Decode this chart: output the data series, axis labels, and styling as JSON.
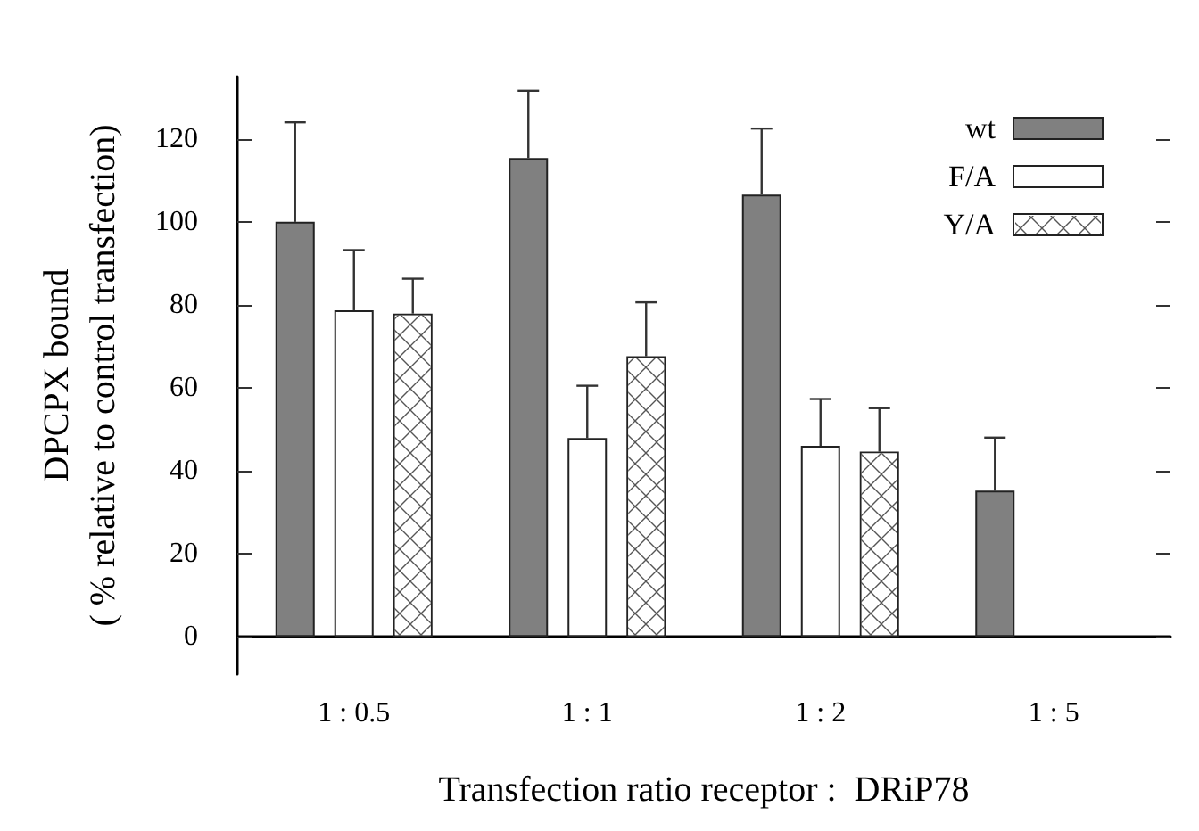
{
  "chart_data": {
    "type": "bar",
    "xlabel": "Transfection ratio receptor :  DRiP78",
    "ylabel": "DPCPX bound\n( % relative to control transfection)",
    "categories": [
      "1 : 0.5",
      "1 : 1",
      "1 : 2",
      "1 : 5"
    ],
    "series": [
      {
        "name": "wt",
        "color": "#808080",
        "values": [
          100,
          115.4,
          106.6,
          35.2
        ],
        "errors": [
          [
            100,
            124
          ],
          [
            115.4,
            131.6
          ],
          [
            106.6,
            122.5
          ],
          [
            35.2,
            48
          ]
        ]
      },
      {
        "name": "F/A",
        "color": "#ffffff",
        "values": [
          78.7,
          47.9,
          46,
          null
        ],
        "errors": [
          [
            78.7,
            93.2
          ],
          [
            47.9,
            60.5
          ],
          [
            46,
            57.3
          ],
          null
        ]
      },
      {
        "name": "Y/A",
        "color": "#ffffff",
        "values": [
          77.9,
          67.6,
          44.6,
          null
        ],
        "errors": [
          [
            77.9,
            86.3
          ],
          [
            67.6,
            80.6
          ],
          [
            44.6,
            55.1
          ],
          null
        ]
      }
    ],
    "ylim": [
      -9,
      135
    ],
    "yticks": [
      0,
      20,
      40,
      60,
      80,
      100,
      120
    ],
    "grid": false,
    "legend": "top right"
  }
}
